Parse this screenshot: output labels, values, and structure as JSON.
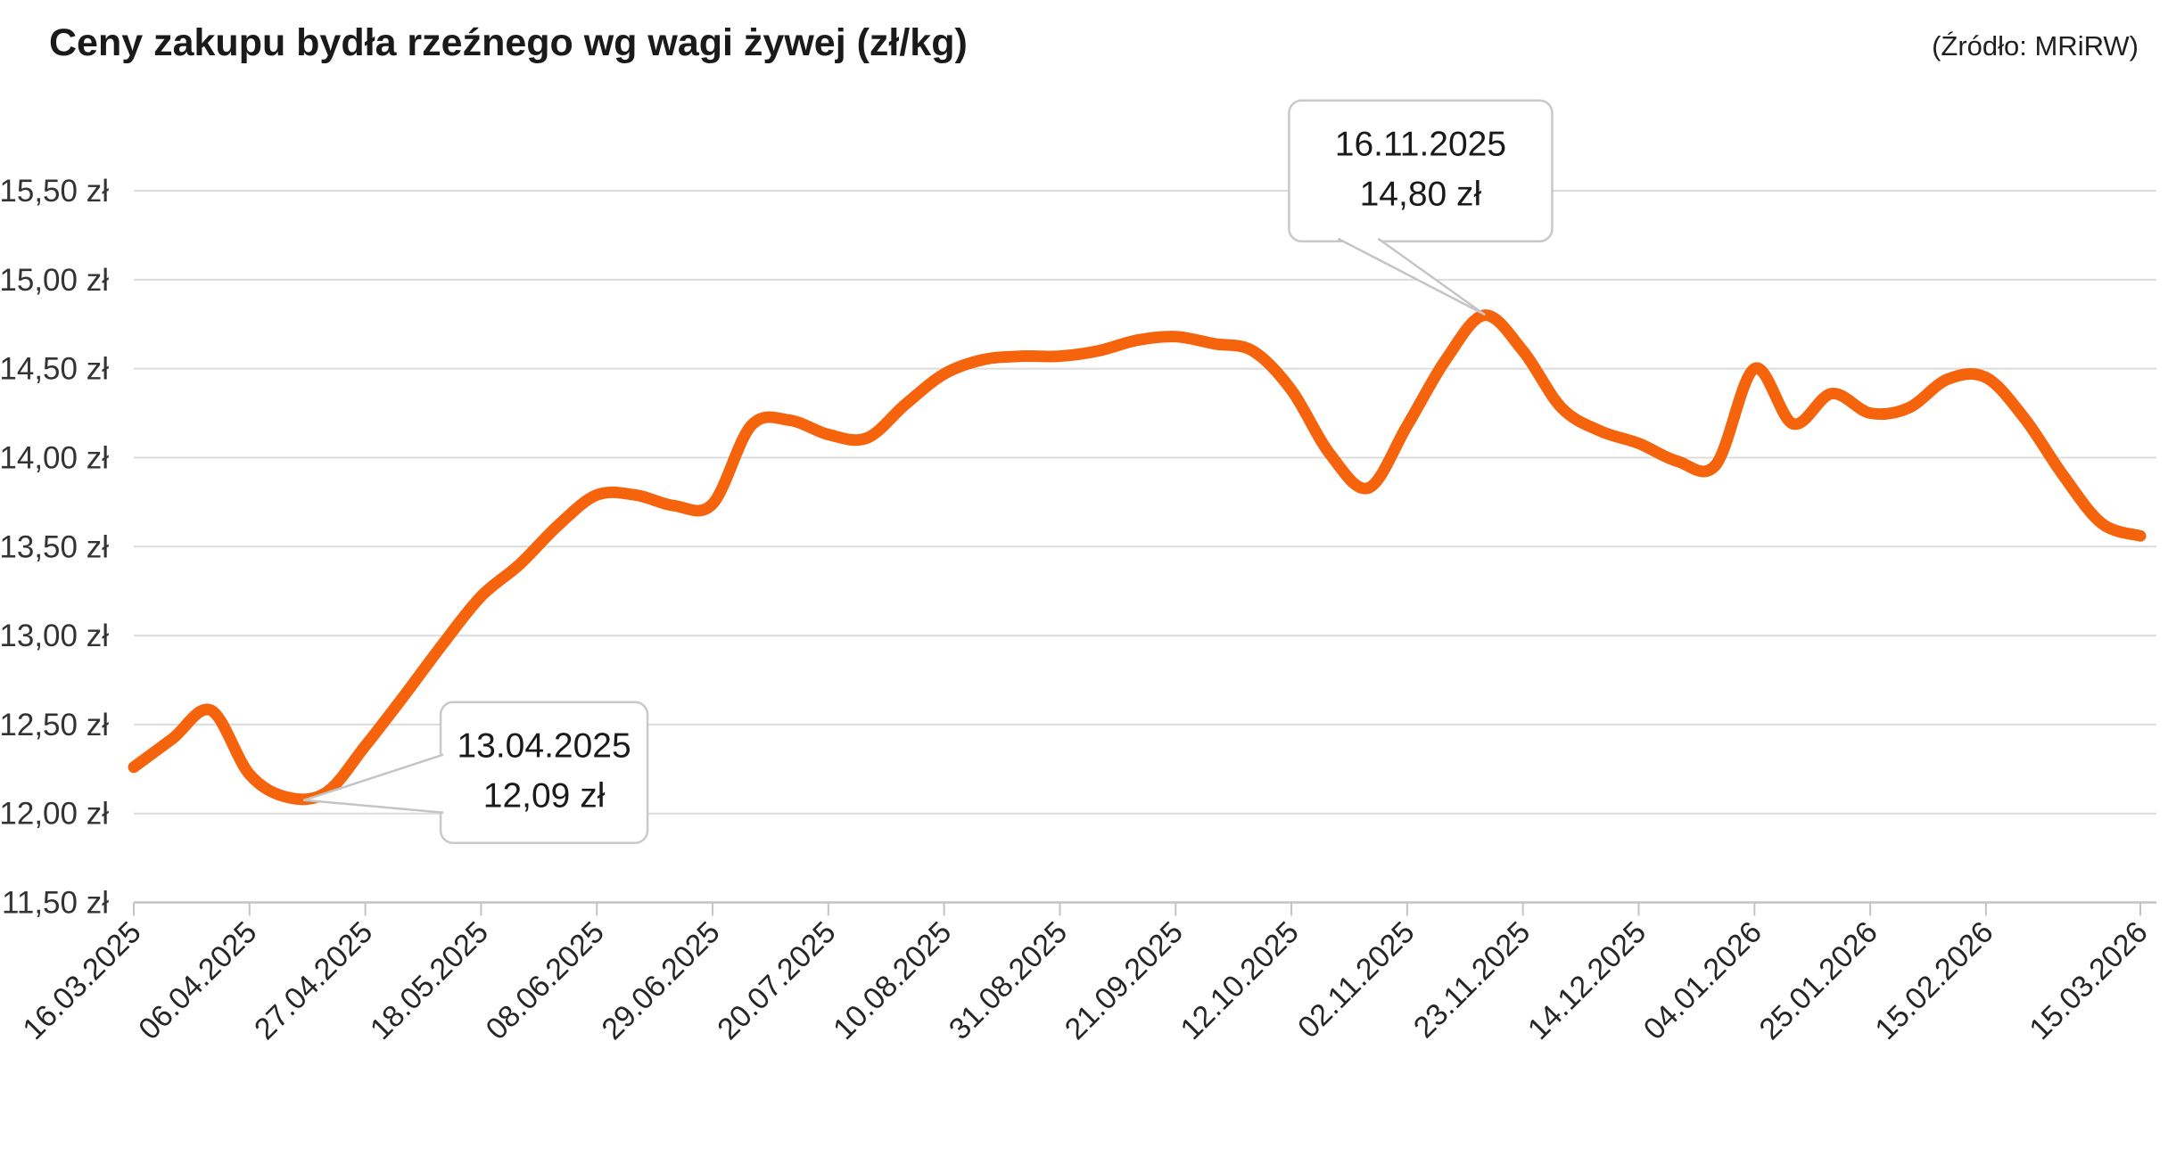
{
  "header": {
    "title": "Ceny zakupu bydła rzeźnego wg wagi żywej (zł/kg)",
    "source": "(Źródło: MRiRW)"
  },
  "chart_data": {
    "type": "line",
    "title": "Ceny zakupu bydła rzeźnego wg wagi żywej (zł/kg)",
    "source": "(Źródło: MRiRW)",
    "y_unit": "zł/kg",
    "ylim": [
      11.5,
      15.5
    ],
    "y_tick_step": 0.5,
    "grid": "horizontal",
    "legend": "none",
    "line_color": "#F5640C",
    "grid_color": "#dcdcdc",
    "axis_color": "#c4c4c4",
    "label_color": "#262626",
    "y_tick_labels": [
      "15,50 zł",
      "15,00 zł",
      "14,50 zł",
      "14,00 zł",
      "13,50 zł",
      "13,00 zł",
      "12,50 zł",
      "12,00 zł",
      "11,50 zł"
    ],
    "y_tick_values": [
      15.5,
      15.0,
      14.5,
      14.0,
      13.5,
      13.0,
      12.5,
      12.0,
      11.5
    ],
    "x_tick_labels": [
      "16.03.2025",
      "06.04.2025",
      "27.04.2025",
      "18.05.2025",
      "08.06.2025",
      "29.06.2025",
      "20.07.2025",
      "10.08.2025",
      "31.08.2025",
      "21.09.2025",
      "12.10.2025",
      "02.11.2025",
      "23.11.2025",
      "14.12.2025",
      "04.01.2026",
      "25.01.2026",
      "15.02.2026",
      "15.03.2026"
    ],
    "x_tick_weeks": [
      0,
      3,
      6,
      9,
      12,
      15,
      18,
      21,
      24,
      27,
      30,
      33,
      36,
      39,
      42,
      45,
      48,
      52
    ],
    "x_range_weeks": 52,
    "series": [
      {
        "name": "Cena zakupu bydła rzeźnego wg wagi żywej",
        "weekly_values": [
          12.26,
          12.42,
          12.58,
          12.22,
          12.09,
          12.12,
          12.38,
          12.66,
          12.95,
          13.22,
          13.4,
          13.62,
          13.79,
          13.79,
          13.73,
          13.74,
          14.18,
          14.21,
          14.13,
          14.11,
          14.3,
          14.47,
          14.55,
          14.57,
          14.57,
          14.6,
          14.66,
          14.68,
          14.64,
          14.6,
          14.38,
          14.02,
          13.83,
          14.18,
          14.55,
          14.8,
          14.6,
          14.28,
          14.15,
          14.08,
          13.98,
          13.96,
          14.5,
          14.19,
          14.36,
          14.25,
          14.28,
          14.44,
          14.45,
          14.22,
          13.9,
          13.63,
          13.56
        ]
      }
    ],
    "annotations": [
      {
        "date": "13.04.2025",
        "value_label": "12,09 zł",
        "week": 4,
        "value": 12.09,
        "placement": "right"
      },
      {
        "date": "16.11.2025",
        "value_label": "14,80 zł",
        "week": 35,
        "value": 14.8,
        "placement": "above"
      }
    ]
  }
}
